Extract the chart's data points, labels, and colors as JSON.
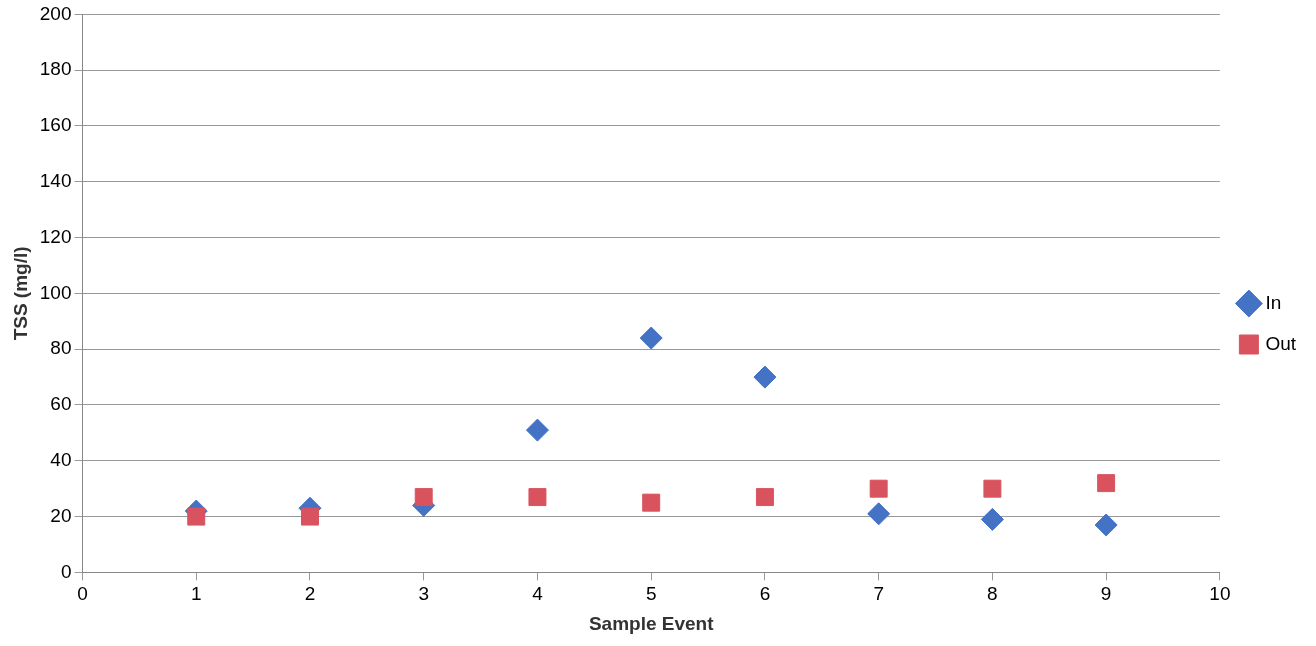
{
  "chart_data": {
    "type": "scatter",
    "xlabel": "Sample Event",
    "ylabel": "TSS (mg/l)",
    "x": [
      1,
      2,
      3,
      4,
      5,
      6,
      7,
      8,
      9
    ],
    "series": [
      {
        "name": "In",
        "color": "#4472c4",
        "marker": "diamond",
        "values": [
          22,
          23,
          24,
          51,
          84,
          70,
          21,
          19,
          17
        ]
      },
      {
        "name": "Out",
        "color": "#d9535f",
        "marker": "square",
        "values": [
          20,
          20,
          27,
          27,
          25,
          27,
          30,
          30,
          32
        ]
      }
    ],
    "xlim": [
      0,
      10
    ],
    "xticks": [
      0,
      1,
      2,
      3,
      4,
      5,
      6,
      7,
      8,
      9,
      10
    ],
    "ylim": [
      0,
      200
    ],
    "yticks": [
      0,
      20,
      40,
      60,
      80,
      100,
      120,
      140,
      160,
      180,
      200
    ],
    "grid": "y",
    "legend": "right"
  }
}
